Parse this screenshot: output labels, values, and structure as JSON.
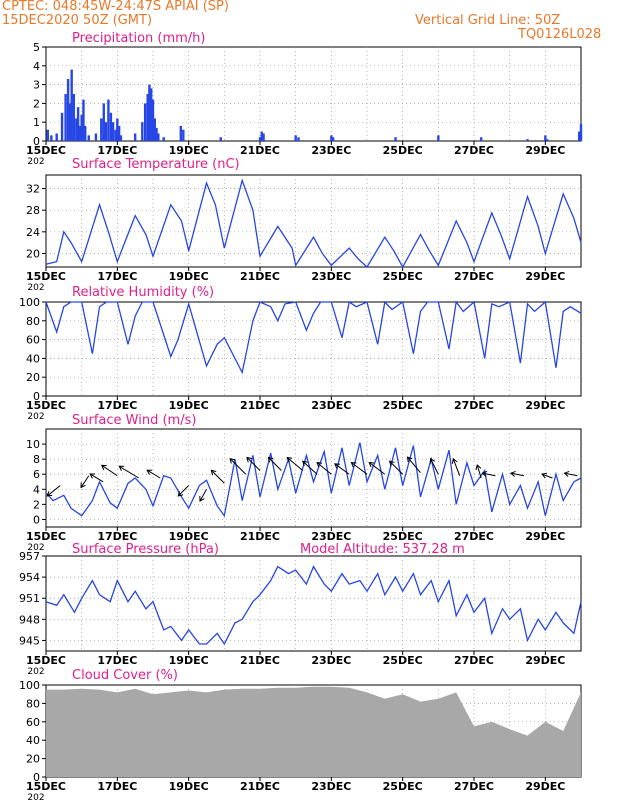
{
  "header": {
    "line1": "CPTEC:   048:45W-24:47S   APIAI (SP)",
    "line2": "15DEC2020 50Z (GMT)",
    "right1": "Vertical Grid Line: 50Z",
    "right2": "TQ0126L028"
  },
  "colors": {
    "header": "#e8792a",
    "title": "#e0208a",
    "line": "#2646e6",
    "bar": "#2646e6",
    "cloud": "#a8a8a8",
    "grid": "#999999"
  },
  "x_ticks": [
    "15DEC",
    "17DEC",
    "19DEC",
    "21DEC",
    "23DEC",
    "25DEC",
    "27DEC",
    "29DEC"
  ],
  "x_year_label": "202",
  "chart_data": [
    {
      "type": "bar",
      "title": "Precipitation (mm/h)",
      "ylim": [
        0,
        5
      ],
      "yticks": [
        0,
        1,
        2,
        3,
        4,
        5
      ],
      "x_unit": "days since 15DEC 00Z",
      "bars": [
        [
          0.05,
          0.6
        ],
        [
          0.15,
          0.3
        ],
        [
          0.3,
          0.4
        ],
        [
          0.45,
          1.5
        ],
        [
          0.55,
          2.5
        ],
        [
          0.62,
          3.3
        ],
        [
          0.68,
          2.0
        ],
        [
          0.72,
          3.8
        ],
        [
          0.78,
          2.5
        ],
        [
          0.85,
          1.2
        ],
        [
          0.9,
          1.8
        ],
        [
          0.95,
          0.8
        ],
        [
          1.0,
          1.4
        ],
        [
          1.05,
          2.2
        ],
        [
          1.1,
          0.8
        ],
        [
          1.2,
          0.3
        ],
        [
          1.4,
          0.4
        ],
        [
          1.55,
          1.2
        ],
        [
          1.62,
          2.0
        ],
        [
          1.68,
          1.0
        ],
        [
          1.75,
          2.2
        ],
        [
          1.82,
          1.5
        ],
        [
          1.88,
          1.0
        ],
        [
          1.95,
          0.6
        ],
        [
          2.0,
          1.2
        ],
        [
          2.05,
          0.8
        ],
        [
          2.1,
          0.3
        ],
        [
          2.5,
          0.4
        ],
        [
          2.7,
          1.0
        ],
        [
          2.78,
          2.0
        ],
        [
          2.85,
          2.5
        ],
        [
          2.9,
          3.0
        ],
        [
          2.95,
          2.8
        ],
        [
          3.0,
          2.2
        ],
        [
          3.05,
          1.2
        ],
        [
          3.1,
          0.7
        ],
        [
          3.15,
          0.4
        ],
        [
          3.3,
          0.2
        ],
        [
          3.78,
          0.8
        ],
        [
          3.85,
          0.6
        ],
        [
          4.9,
          0.2
        ],
        [
          6.0,
          0.2
        ],
        [
          6.05,
          0.5
        ],
        [
          6.1,
          0.4
        ],
        [
          7.0,
          0.3
        ],
        [
          7.08,
          0.2
        ],
        [
          8.0,
          0.3
        ],
        [
          8.05,
          0.2
        ],
        [
          9.8,
          0.2
        ],
        [
          11.0,
          0.3
        ],
        [
          12.2,
          0.2
        ],
        [
          13.5,
          0.1
        ],
        [
          14.0,
          0.3
        ],
        [
          14.05,
          0.1
        ],
        [
          14.95,
          0.5
        ],
        [
          15.0,
          0.9
        ]
      ]
    },
    {
      "type": "line",
      "title": "Surface Temperature (nC)",
      "ylim": [
        17.5,
        34.5
      ],
      "yticks": [
        20,
        24,
        28,
        32
      ],
      "x": [
        0,
        0.3,
        0.5,
        0.7,
        1.0,
        1.5,
        1.75,
        2.0,
        2.5,
        2.8,
        3.0,
        3.5,
        3.8,
        4.0,
        4.5,
        4.75,
        5.0,
        5.5,
        5.8,
        6.0,
        6.5,
        6.9,
        7.0,
        7.5,
        7.75,
        8.0,
        8.5,
        8.75,
        9.0,
        9.5,
        9.75,
        10.0,
        10.5,
        10.75,
        11.0,
        11.5,
        11.8,
        12.0,
        12.5,
        12.75,
        13.0,
        13.5,
        13.8,
        14.0,
        14.5,
        14.8,
        15.0
      ],
      "values": [
        18.0,
        18.5,
        24.0,
        22.0,
        18.5,
        29.0,
        24.0,
        18.5,
        27.0,
        23.5,
        19.5,
        29.0,
        26.0,
        20.5,
        33.0,
        29.0,
        21.0,
        33.5,
        28.0,
        19.5,
        25.0,
        21.0,
        17.8,
        23.0,
        20.0,
        17.8,
        21.0,
        19.0,
        17.5,
        23.0,
        20.5,
        17.5,
        23.5,
        20.5,
        17.8,
        26.0,
        22.0,
        18.5,
        27.5,
        23.5,
        19.0,
        30.5,
        25.0,
        20.0,
        31.0,
        26.5,
        22.0
      ]
    },
    {
      "type": "line",
      "title": "Relative Humidity (%)",
      "ylim": [
        0,
        100
      ],
      "yticks": [
        0,
        20,
        40,
        60,
        80,
        100
      ],
      "x": [
        0,
        0.3,
        0.5,
        0.7,
        1.0,
        1.3,
        1.5,
        1.7,
        2.0,
        2.3,
        2.5,
        2.7,
        3.0,
        3.5,
        3.7,
        4.0,
        4.5,
        4.8,
        5.0,
        5.5,
        5.8,
        6.0,
        6.3,
        6.5,
        6.7,
        7.0,
        7.3,
        7.5,
        7.7,
        8.0,
        8.3,
        8.5,
        8.7,
        9.0,
        9.3,
        9.5,
        9.7,
        10.0,
        10.3,
        10.5,
        10.7,
        11.0,
        11.3,
        11.5,
        11.7,
        12.0,
        12.3,
        12.5,
        12.7,
        13.0,
        13.3,
        13.5,
        13.7,
        14.0,
        14.3,
        14.5,
        14.7,
        15.0
      ],
      "values": [
        100,
        68,
        95,
        100,
        100,
        45,
        95,
        100,
        100,
        55,
        85,
        100,
        100,
        42,
        60,
        98,
        32,
        55,
        62,
        25,
        80,
        100,
        95,
        80,
        98,
        100,
        70,
        88,
        100,
        100,
        62,
        100,
        95,
        100,
        55,
        100,
        92,
        100,
        45,
        90,
        100,
        100,
        50,
        100,
        90,
        100,
        40,
        98,
        95,
        100,
        35,
        98,
        90,
        100,
        30,
        90,
        95,
        88
      ]
    },
    {
      "type": "line",
      "title": "Surface Wind (m/s)",
      "ylim": [
        -1,
        12
      ],
      "yticks": [
        0,
        2,
        4,
        6,
        8,
        10
      ],
      "x": [
        0,
        0.2,
        0.5,
        0.7,
        1.0,
        1.3,
        1.5,
        1.8,
        2.0,
        2.3,
        2.5,
        2.8,
        3.0,
        3.3,
        3.5,
        3.8,
        4.0,
        4.3,
        4.5,
        4.8,
        5.0,
        5.3,
        5.5,
        5.8,
        6.0,
        6.3,
        6.5,
        6.8,
        7.0,
        7.3,
        7.5,
        7.8,
        8.0,
        8.3,
        8.5,
        8.8,
        9.0,
        9.3,
        9.5,
        9.8,
        10.0,
        10.3,
        10.5,
        10.8,
        11.0,
        11.3,
        11.5,
        11.8,
        12.0,
        12.3,
        12.5,
        12.8,
        13.0,
        13.3,
        13.5,
        13.8,
        14.0,
        14.3,
        14.5,
        14.8,
        15.0
      ],
      "values": [
        3.5,
        2.5,
        3.2,
        1.5,
        0.5,
        2.5,
        5.0,
        2.2,
        1.5,
        4.8,
        5.5,
        4.0,
        1.8,
        5.8,
        5.5,
        3.0,
        1.5,
        4.5,
        5.2,
        1.8,
        0.5,
        8.0,
        2.5,
        8.5,
        3.0,
        8.8,
        4.0,
        8.0,
        3.5,
        8.5,
        5.0,
        9.0,
        3.5,
        9.5,
        4.5,
        10.2,
        5.0,
        8.5,
        4.0,
        9.5,
        4.5,
        9.8,
        3.0,
        8.0,
        4.0,
        9.2,
        2.0,
        7.5,
        4.5,
        6.5,
        1.0,
        6.0,
        2.0,
        4.5,
        1.5,
        5.0,
        0.5,
        6.0,
        2.5,
        5.0,
        5.5
      ],
      "vectors": [
        [
          0.4,
          4.5,
          -1,
          -0.8
        ],
        [
          1.2,
          5.8,
          -0.6,
          -0.9
        ],
        [
          1.6,
          5.0,
          -1,
          0.6
        ],
        [
          2.0,
          5.8,
          -1.2,
          0.8
        ],
        [
          2.6,
          5.5,
          -1.5,
          0.9
        ],
        [
          3.2,
          5.5,
          -1,
          0.6
        ],
        [
          4.0,
          4.5,
          -0.8,
          -0.8
        ],
        [
          4.5,
          4.0,
          -0.5,
          -0.9
        ],
        [
          5.0,
          4.8,
          -1,
          1.0
        ],
        [
          5.6,
          6.0,
          -1.2,
          1.2
        ],
        [
          6.0,
          6.5,
          -1.0,
          1.0
        ],
        [
          6.6,
          6.5,
          -1.0,
          1.0
        ],
        [
          7.2,
          6.5,
          -1.2,
          1.0
        ],
        [
          7.6,
          6.0,
          -1.1,
          1.0
        ],
        [
          8.0,
          6.0,
          -1.1,
          0.9
        ],
        [
          8.5,
          6.0,
          -1.1,
          0.8
        ],
        [
          9.0,
          6.0,
          -1.2,
          0.9
        ],
        [
          9.5,
          6.0,
          -1.2,
          0.9
        ],
        [
          10.0,
          6.0,
          -1.0,
          1.0
        ],
        [
          10.5,
          6.2,
          -1.0,
          1.2
        ],
        [
          11.0,
          6.0,
          -0.6,
          1.2
        ],
        [
          11.6,
          5.8,
          -0.5,
          1.3
        ],
        [
          12.2,
          5.5,
          -0.3,
          1.0
        ],
        [
          12.6,
          5.8,
          -1.0,
          0.2
        ],
        [
          13.4,
          5.8,
          -1.0,
          0.2
        ],
        [
          14.2,
          5.5,
          -0.8,
          0.3
        ],
        [
          14.9,
          5.8,
          -1.0,
          0.2
        ]
      ]
    },
    {
      "type": "line",
      "title": "Surface Pressure (hPa)",
      "subtitle": "Model Altitude: 537.28 m",
      "ylim": [
        943.5,
        957
      ],
      "yticks": [
        945,
        948,
        951,
        954,
        957
      ],
      "x": [
        0,
        0.3,
        0.5,
        0.8,
        1.0,
        1.3,
        1.5,
        1.8,
        2.0,
        2.3,
        2.5,
        2.8,
        3.0,
        3.3,
        3.5,
        3.8,
        4.0,
        4.3,
        4.5,
        4.8,
        5.0,
        5.3,
        5.5,
        5.8,
        6.0,
        6.3,
        6.5,
        6.8,
        7.0,
        7.3,
        7.5,
        7.8,
        8.0,
        8.3,
        8.5,
        8.8,
        9.0,
        9.3,
        9.5,
        9.8,
        10.0,
        10.3,
        10.5,
        10.8,
        11.0,
        11.3,
        11.5,
        11.8,
        12.0,
        12.3,
        12.5,
        12.8,
        13.0,
        13.3,
        13.5,
        13.8,
        14.0,
        14.3,
        14.5,
        14.8,
        15.0
      ],
      "values": [
        950.5,
        950.0,
        951.5,
        949.0,
        951.0,
        953.5,
        951.5,
        950.5,
        953.5,
        950.5,
        952.0,
        949.5,
        950.5,
        946.5,
        947.0,
        945.0,
        946.5,
        944.5,
        944.5,
        946.0,
        944.5,
        947.5,
        948.0,
        950.5,
        951.5,
        953.5,
        955.5,
        954.5,
        955.0,
        953.0,
        955.5,
        953.0,
        952.0,
        954.5,
        953.0,
        953.5,
        952.0,
        954.5,
        951.5,
        954.0,
        952.0,
        954.5,
        951.5,
        953.5,
        950.5,
        953.5,
        948.5,
        951.5,
        949.0,
        951.0,
        946.0,
        949.5,
        948.0,
        949.5,
        945.0,
        948.0,
        946.5,
        949.0,
        947.5,
        946.0,
        950.5
      ]
    },
    {
      "type": "area",
      "title": "Cloud Cover (%)",
      "ylim": [
        0,
        100
      ],
      "yticks": [
        0,
        20,
        40,
        60,
        80,
        100
      ],
      "x": [
        0,
        0.5,
        1.0,
        1.5,
        2.0,
        2.5,
        3.0,
        3.5,
        4.0,
        4.5,
        5.0,
        5.5,
        6.0,
        6.5,
        7.0,
        7.5,
        8.0,
        8.5,
        9.0,
        9.5,
        10.0,
        10.5,
        11.0,
        11.5,
        12.0,
        12.5,
        13.0,
        13.5,
        14.0,
        14.5,
        15.0
      ],
      "values": [
        95,
        95,
        96,
        95,
        92,
        96,
        90,
        92,
        94,
        92,
        95,
        96,
        96,
        97,
        97,
        98,
        98,
        97,
        92,
        85,
        90,
        82,
        85,
        92,
        55,
        60,
        52,
        45,
        60,
        50,
        92
      ]
    }
  ]
}
